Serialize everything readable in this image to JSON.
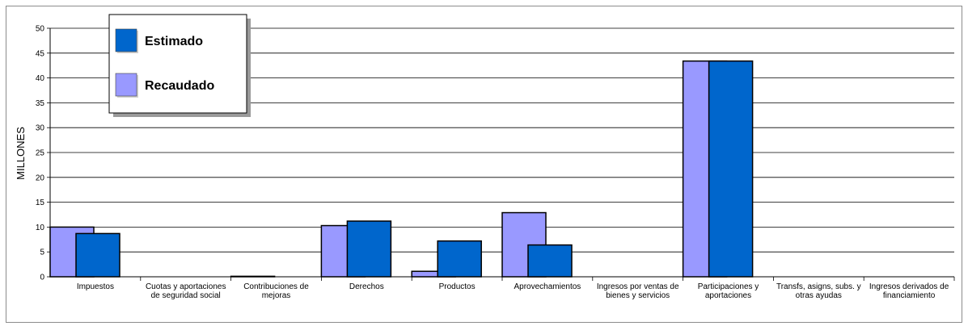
{
  "chart_data": {
    "type": "bar",
    "ylabel": "MILLONES",
    "xlabel": "",
    "ylim": [
      0,
      50
    ],
    "yticks": [
      0,
      5,
      10,
      15,
      20,
      25,
      30,
      35,
      40,
      45,
      50
    ],
    "grid": true,
    "legend_position": "top-left",
    "categories": [
      [
        "Impuestos"
      ],
      [
        "Cuotas y aportaciones",
        "de seguridad social"
      ],
      [
        "Contribuciones de",
        "mejoras"
      ],
      [
        "Derechos"
      ],
      [
        "Productos"
      ],
      [
        "Aprovechamientos"
      ],
      [
        "Ingresos por ventas de",
        "bienes y servicios"
      ],
      [
        "Participaciones y",
        "aportaciones"
      ],
      [
        "Transfs, asigns, subs. y",
        "otras ayudas"
      ],
      [
        "Ingresos derivados de",
        "financiamiento"
      ]
    ],
    "series": [
      {
        "name": "Recaudado",
        "color": "#9999ff",
        "values": [
          10.0,
          0,
          0.1,
          10.3,
          1.1,
          12.9,
          0,
          43.4,
          0,
          0
        ]
      },
      {
        "name": "Estimado",
        "color": "#0066cc",
        "values": [
          8.7,
          0,
          0,
          11.2,
          7.2,
          6.4,
          0,
          43.4,
          0,
          0
        ]
      }
    ]
  }
}
